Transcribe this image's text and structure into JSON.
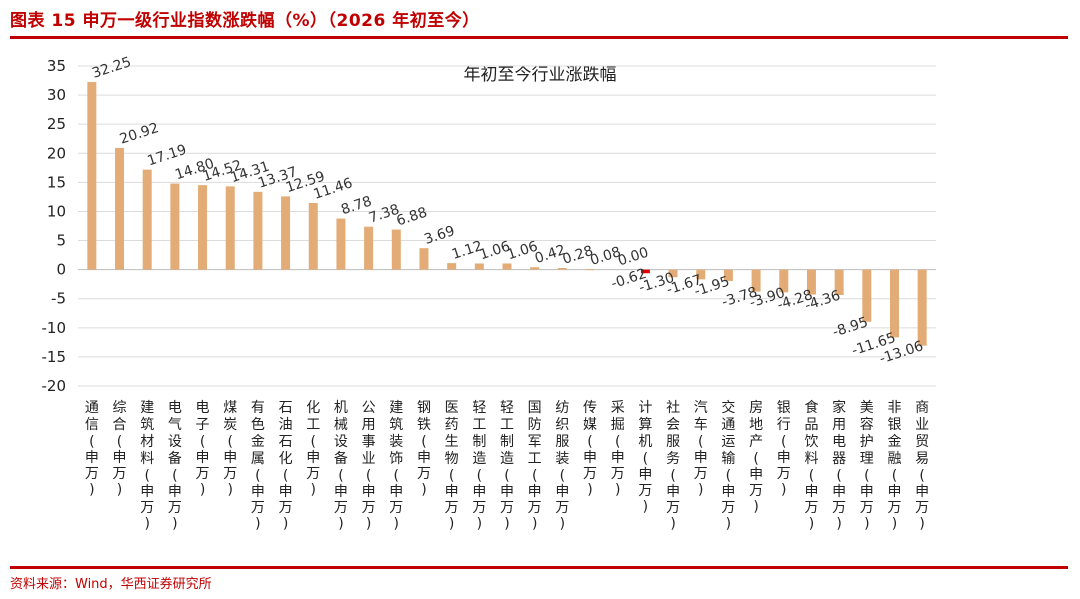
{
  "header": {
    "title": "图表 15 申万一级行业指数涨跌幅（%）（2026 年初至今）",
    "accent_color": "#c00000"
  },
  "footer": {
    "source": "资料来源：Wind，华西证券研究所"
  },
  "chart_data": {
    "type": "bar",
    "title": "年初至今行业涨跌幅",
    "xlabel": "",
    "ylabel": "",
    "ylim": [
      -20,
      35
    ],
    "yticks": [
      35,
      30,
      25,
      20,
      15,
      10,
      5,
      0,
      -5,
      -10,
      -15,
      -20
    ],
    "grid": true,
    "bar_color": "#e3ac76",
    "highlight_color": "#e00000",
    "highlight_category": "计算机(申万)",
    "categories": [
      "通信(申万)",
      "综合(申万)",
      "建筑材料(申万)",
      "电气设备(申万)",
      "电子(申万)",
      "煤炭(申万)",
      "有色金属(申万)",
      "石油石化(申万)",
      "化工(申万)",
      "机械设备(申万)",
      "公用事业(申万)",
      "建筑装饰(申万)",
      "钢铁(申万)",
      "医药生物(申万)",
      "轻工制造(申万)",
      "轻工制造(申万)",
      "国防军工(申万)",
      "纺织服装(申万)",
      "传媒(申万)",
      "采掘(申万)",
      "计算机(申万)",
      "社会服务(申万)",
      "汽车(申万)",
      "交通运输(申万)",
      "房地产(申万)",
      "银行(申万)",
      "食品饮料(申万)",
      "家用电器(申万)",
      "美容护理(申万)",
      "非银金融(申万)",
      "商业贸易(申万)"
    ],
    "values": [
      32.25,
      20.92,
      17.19,
      14.8,
      14.52,
      14.31,
      13.37,
      12.59,
      11.46,
      8.78,
      7.38,
      6.88,
      3.69,
      1.12,
      1.06,
      1.06,
      0.42,
      0.28,
      0.08,
      0.0,
      -0.62,
      -1.3,
      -1.67,
      -1.95,
      -3.78,
      -3.9,
      -4.28,
      -4.36,
      -8.95,
      -11.65,
      -13.06
    ],
    "value_labels": [
      "32.25",
      "20.92",
      "17.19",
      "14.80",
      "14.52",
      "14.31",
      "13.37",
      "12.59",
      "11.46",
      "8.78",
      "7.38",
      "6.88",
      "3.69",
      "1.12",
      "1.06",
      "1.06",
      "0.42",
      "0.28",
      "0.08",
      "0.00",
      "-0.62",
      "-1.30",
      "-1.67",
      "-1.95",
      "-3.78",
      "-3.90",
      "-4.28",
      "-4.36",
      "-8.95",
      "-11.65",
      "-13.06"
    ]
  }
}
